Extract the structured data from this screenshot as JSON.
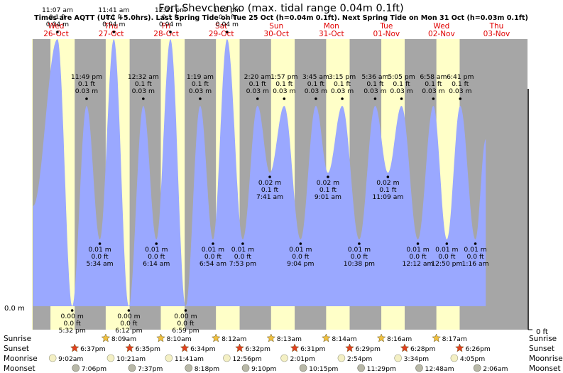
{
  "chart_data": {
    "type": "area",
    "title": "Fort Shevchenko (max. tidal range 0.04m 0.1ft)",
    "subtitle": "Times are AQTT (UTC +5.0hrs). Last Spring Tide on Tue 25 Oct (h=0.04m 0.1ft). Next Spring Tide on Mon 31 Oct (h=0.03m 0.1ft)",
    "ylabel_left": "0.0 m",
    "ylabel_right": "0 ft",
    "xrange_hours": [
      0,
      216
    ],
    "ylim": [
      -0.005,
      0.045
    ],
    "days": [
      {
        "dow": "Wed",
        "date": "26-Oct"
      },
      {
        "dow": "Thu",
        "date": "27-Oct"
      },
      {
        "dow": "Fri",
        "date": "28-Oct"
      },
      {
        "dow": "Sat",
        "date": "29-Oct"
      },
      {
        "dow": "Sun",
        "date": "30-Oct"
      },
      {
        "dow": "Mon",
        "date": "31-Oct"
      },
      {
        "dow": "Tue",
        "date": "01-Nov"
      },
      {
        "dow": "Wed",
        "date": "02-Nov"
      },
      {
        "dow": "Thu",
        "date": "03-Nov"
      }
    ],
    "daylight": [
      {
        "rise": 8.07,
        "set": 18.62
      },
      {
        "rise": 32.15,
        "set": 42.58
      },
      {
        "rise": 56.17,
        "set": 66.57
      },
      {
        "rise": 80.2,
        "set": 90.53
      },
      {
        "rise": 104.22,
        "set": 114.52
      },
      {
        "rise": 128.23,
        "set": 138.48
      },
      {
        "rise": 152.27,
        "set": 162.47
      },
      {
        "rise": 176.28,
        "set": 186.43
      }
    ],
    "tides": [
      {
        "h": 0.5,
        "m": 0.015,
        "show": false
      },
      {
        "h": 11.12,
        "m": 0.04,
        "time": "11:07 am",
        "ft": "0.1 ft",
        "mt": "0.04 m",
        "type": "high"
      },
      {
        "h": 17.53,
        "m": 0.0,
        "time": "5:32 pm",
        "ft": "0.0 ft",
        "mt": "0.00 m",
        "type": "low"
      },
      {
        "h": 23.82,
        "m": 0.03,
        "time": "11:49 pm",
        "ft": "0.1 ft",
        "mt": "0.03 m",
        "type": "high"
      },
      {
        "h": 29.57,
        "m": 0.01,
        "time": "5:34 am",
        "ft": "0.0 ft",
        "mt": "0.01 m",
        "type": "low"
      },
      {
        "h": 35.68,
        "m": 0.04,
        "time": "11:41 am",
        "ft": "0.1 ft",
        "mt": "0.04 m",
        "type": "high"
      },
      {
        "h": 42.2,
        "m": 0.0,
        "time": "6:12 pm",
        "ft": "0.0 ft",
        "mt": "0.00 m",
        "type": "low"
      },
      {
        "h": 48.53,
        "m": 0.03,
        "time": "12:32 am",
        "ft": "0.1 ft",
        "mt": "0.03 m",
        "type": "high"
      },
      {
        "h": 54.23,
        "m": 0.01,
        "time": "6:14 am",
        "ft": "0.0 ft",
        "mt": "0.01 m",
        "type": "low"
      },
      {
        "h": 60.35,
        "m": 0.04,
        "time": "12:21 pm",
        "ft": "0.1 ft",
        "mt": "0.04 m",
        "type": "high"
      },
      {
        "h": 66.98,
        "m": 0.0,
        "time": "6:59 pm",
        "ft": "0.0 ft",
        "mt": "0.00 m",
        "type": "low"
      },
      {
        "h": 73.32,
        "m": 0.03,
        "time": "1:19 am",
        "ft": "0.1 ft",
        "mt": "0.03 m",
        "type": "high"
      },
      {
        "h": 78.9,
        "m": 0.01,
        "time": "6:54 am",
        "ft": "0.0 ft",
        "mt": "0.01 m",
        "type": "low"
      },
      {
        "h": 85.05,
        "m": 0.04,
        "time": "1:03 pm",
        "ft": "0.1 ft",
        "mt": "0.04 m",
        "type": "high"
      },
      {
        "h": 91.88,
        "m": 0.01,
        "time": "7:53 pm",
        "ft": "0.0 ft",
        "mt": "0.01 m",
        "type": "low"
      },
      {
        "h": 98.33,
        "m": 0.03,
        "time": "2:20 am",
        "ft": "0.1 ft",
        "mt": "0.03 m",
        "type": "high"
      },
      {
        "h": 103.68,
        "m": 0.02,
        "time": "7:41 am",
        "ft": "0.1 ft",
        "mt": "0.02 m",
        "type": "low"
      },
      {
        "h": 109.95,
        "m": 0.03,
        "time": "1:57 pm",
        "ft": "0.1 ft",
        "mt": "0.03 m",
        "type": "high"
      },
      {
        "h": 117.07,
        "m": 0.01,
        "time": "9:04 pm",
        "ft": "0.0 ft",
        "mt": "0.01 m",
        "type": "low"
      },
      {
        "h": 123.75,
        "m": 0.03,
        "time": "3:45 am",
        "ft": "0.1 ft",
        "mt": "0.03 m",
        "type": "high"
      },
      {
        "h": 129.02,
        "m": 0.02,
        "time": "9:01 am",
        "ft": "0.1 ft",
        "mt": "0.02 m",
        "type": "low"
      },
      {
        "h": 135.25,
        "m": 0.03,
        "time": "3:15 pm",
        "ft": "0.1 ft",
        "mt": "0.03 m",
        "type": "high"
      },
      {
        "h": 142.63,
        "m": 0.01,
        "time": "10:38 pm",
        "ft": "0.0 ft",
        "mt": "0.01 m",
        "type": "low"
      },
      {
        "h": 149.6,
        "m": 0.03,
        "time": "5:36 am",
        "ft": "0.1 ft",
        "mt": "0.03 m",
        "type": "high"
      },
      {
        "h": 155.15,
        "m": 0.02,
        "time": "11:09 am",
        "ft": "0.1 ft",
        "mt": "0.02 m",
        "type": "low"
      },
      {
        "h": 161.08,
        "m": 0.03,
        "time": "5:05 pm",
        "ft": "0.1 ft",
        "mt": "0.03 m",
        "type": "high"
      },
      {
        "h": 168.2,
        "m": 0.01,
        "time": "12:12 am",
        "ft": "0.0 ft",
        "mt": "0.01 m",
        "type": "low"
      },
      {
        "h": 174.97,
        "m": 0.03,
        "time": "6:58 am",
        "ft": "0.1 ft",
        "mt": "0.03 m",
        "type": "high"
      },
      {
        "h": 180.83,
        "m": 0.01,
        "time": "12:50 pm",
        "ft": "0.0 ft",
        "mt": "0.01 m",
        "type": "low"
      },
      {
        "h": 186.68,
        "m": 0.03,
        "time": "6:41 pm",
        "ft": "0.1 ft",
        "mt": "0.03 m",
        "type": "high"
      },
      {
        "h": 193.27,
        "m": 0.01,
        "time": "1:16 am",
        "ft": "0.0 ft",
        "mt": "0.01 m",
        "type": "low"
      },
      {
        "h": 197.8,
        "m": 0.025,
        "show": false
      }
    ],
    "astro_rows": [
      {
        "label": "Sunrise",
        "icon": "sun-rise-icon",
        "items": [
          {
            "h": 32.15,
            "text": "8:09am"
          },
          {
            "h": 56.17,
            "text": "8:10am"
          },
          {
            "h": 80.2,
            "text": "8:12am"
          },
          {
            "h": 104.22,
            "text": "8:13am"
          },
          {
            "h": 128.23,
            "text": "8:14am"
          },
          {
            "h": 152.27,
            "text": "8:16am"
          },
          {
            "h": 176.28,
            "text": "8:17am"
          }
        ]
      },
      {
        "label": "Sunset",
        "icon": "sun-set-icon",
        "items": [
          {
            "h": 18.62,
            "text": "6:37pm"
          },
          {
            "h": 42.58,
            "text": "6:35pm"
          },
          {
            "h": 66.57,
            "text": "6:34pm"
          },
          {
            "h": 90.53,
            "text": "6:32pm"
          },
          {
            "h": 114.52,
            "text": "6:31pm"
          },
          {
            "h": 138.48,
            "text": "6:29pm"
          },
          {
            "h": 162.47,
            "text": "6:28pm"
          },
          {
            "h": 186.43,
            "text": "6:26pm"
          }
        ]
      },
      {
        "label": "Moonrise",
        "icon": "moonrise-icon",
        "items": [
          {
            "h": 9.03,
            "text": "9:02am"
          },
          {
            "h": 34.35,
            "text": "10:21am"
          },
          {
            "h": 59.68,
            "text": "11:41am"
          },
          {
            "h": 84.93,
            "text": "12:56pm"
          },
          {
            "h": 110.02,
            "text": "2:01pm"
          },
          {
            "h": 134.9,
            "text": "2:54pm"
          },
          {
            "h": 159.57,
            "text": "3:34pm"
          },
          {
            "h": 184.08,
            "text": "4:05pm"
          }
        ]
      },
      {
        "label": "Moonset",
        "icon": "moonset-icon",
        "items": [
          {
            "h": 19.1,
            "text": "7:06pm"
          },
          {
            "h": 43.62,
            "text": "7:37pm"
          },
          {
            "h": 68.3,
            "text": "8:18pm"
          },
          {
            "h": 93.17,
            "text": "9:10pm"
          },
          {
            "h": 118.25,
            "text": "10:15pm"
          },
          {
            "h": 143.48,
            "text": "11:29pm"
          },
          {
            "h": 168.8,
            "text": "12:48am"
          },
          {
            "h": 194.1,
            "text": "2:06am"
          }
        ]
      }
    ],
    "colors": {
      "water": "#9aa8ff",
      "night": "#a6a6a6",
      "day": "#ffffc8",
      "day_label": "#e00000",
      "sun_icon": "#f0c040",
      "sunset_icon": "#e04020",
      "moon_icon": "#f4f0c4",
      "moonset_icon": "#b8b8a8"
    }
  }
}
